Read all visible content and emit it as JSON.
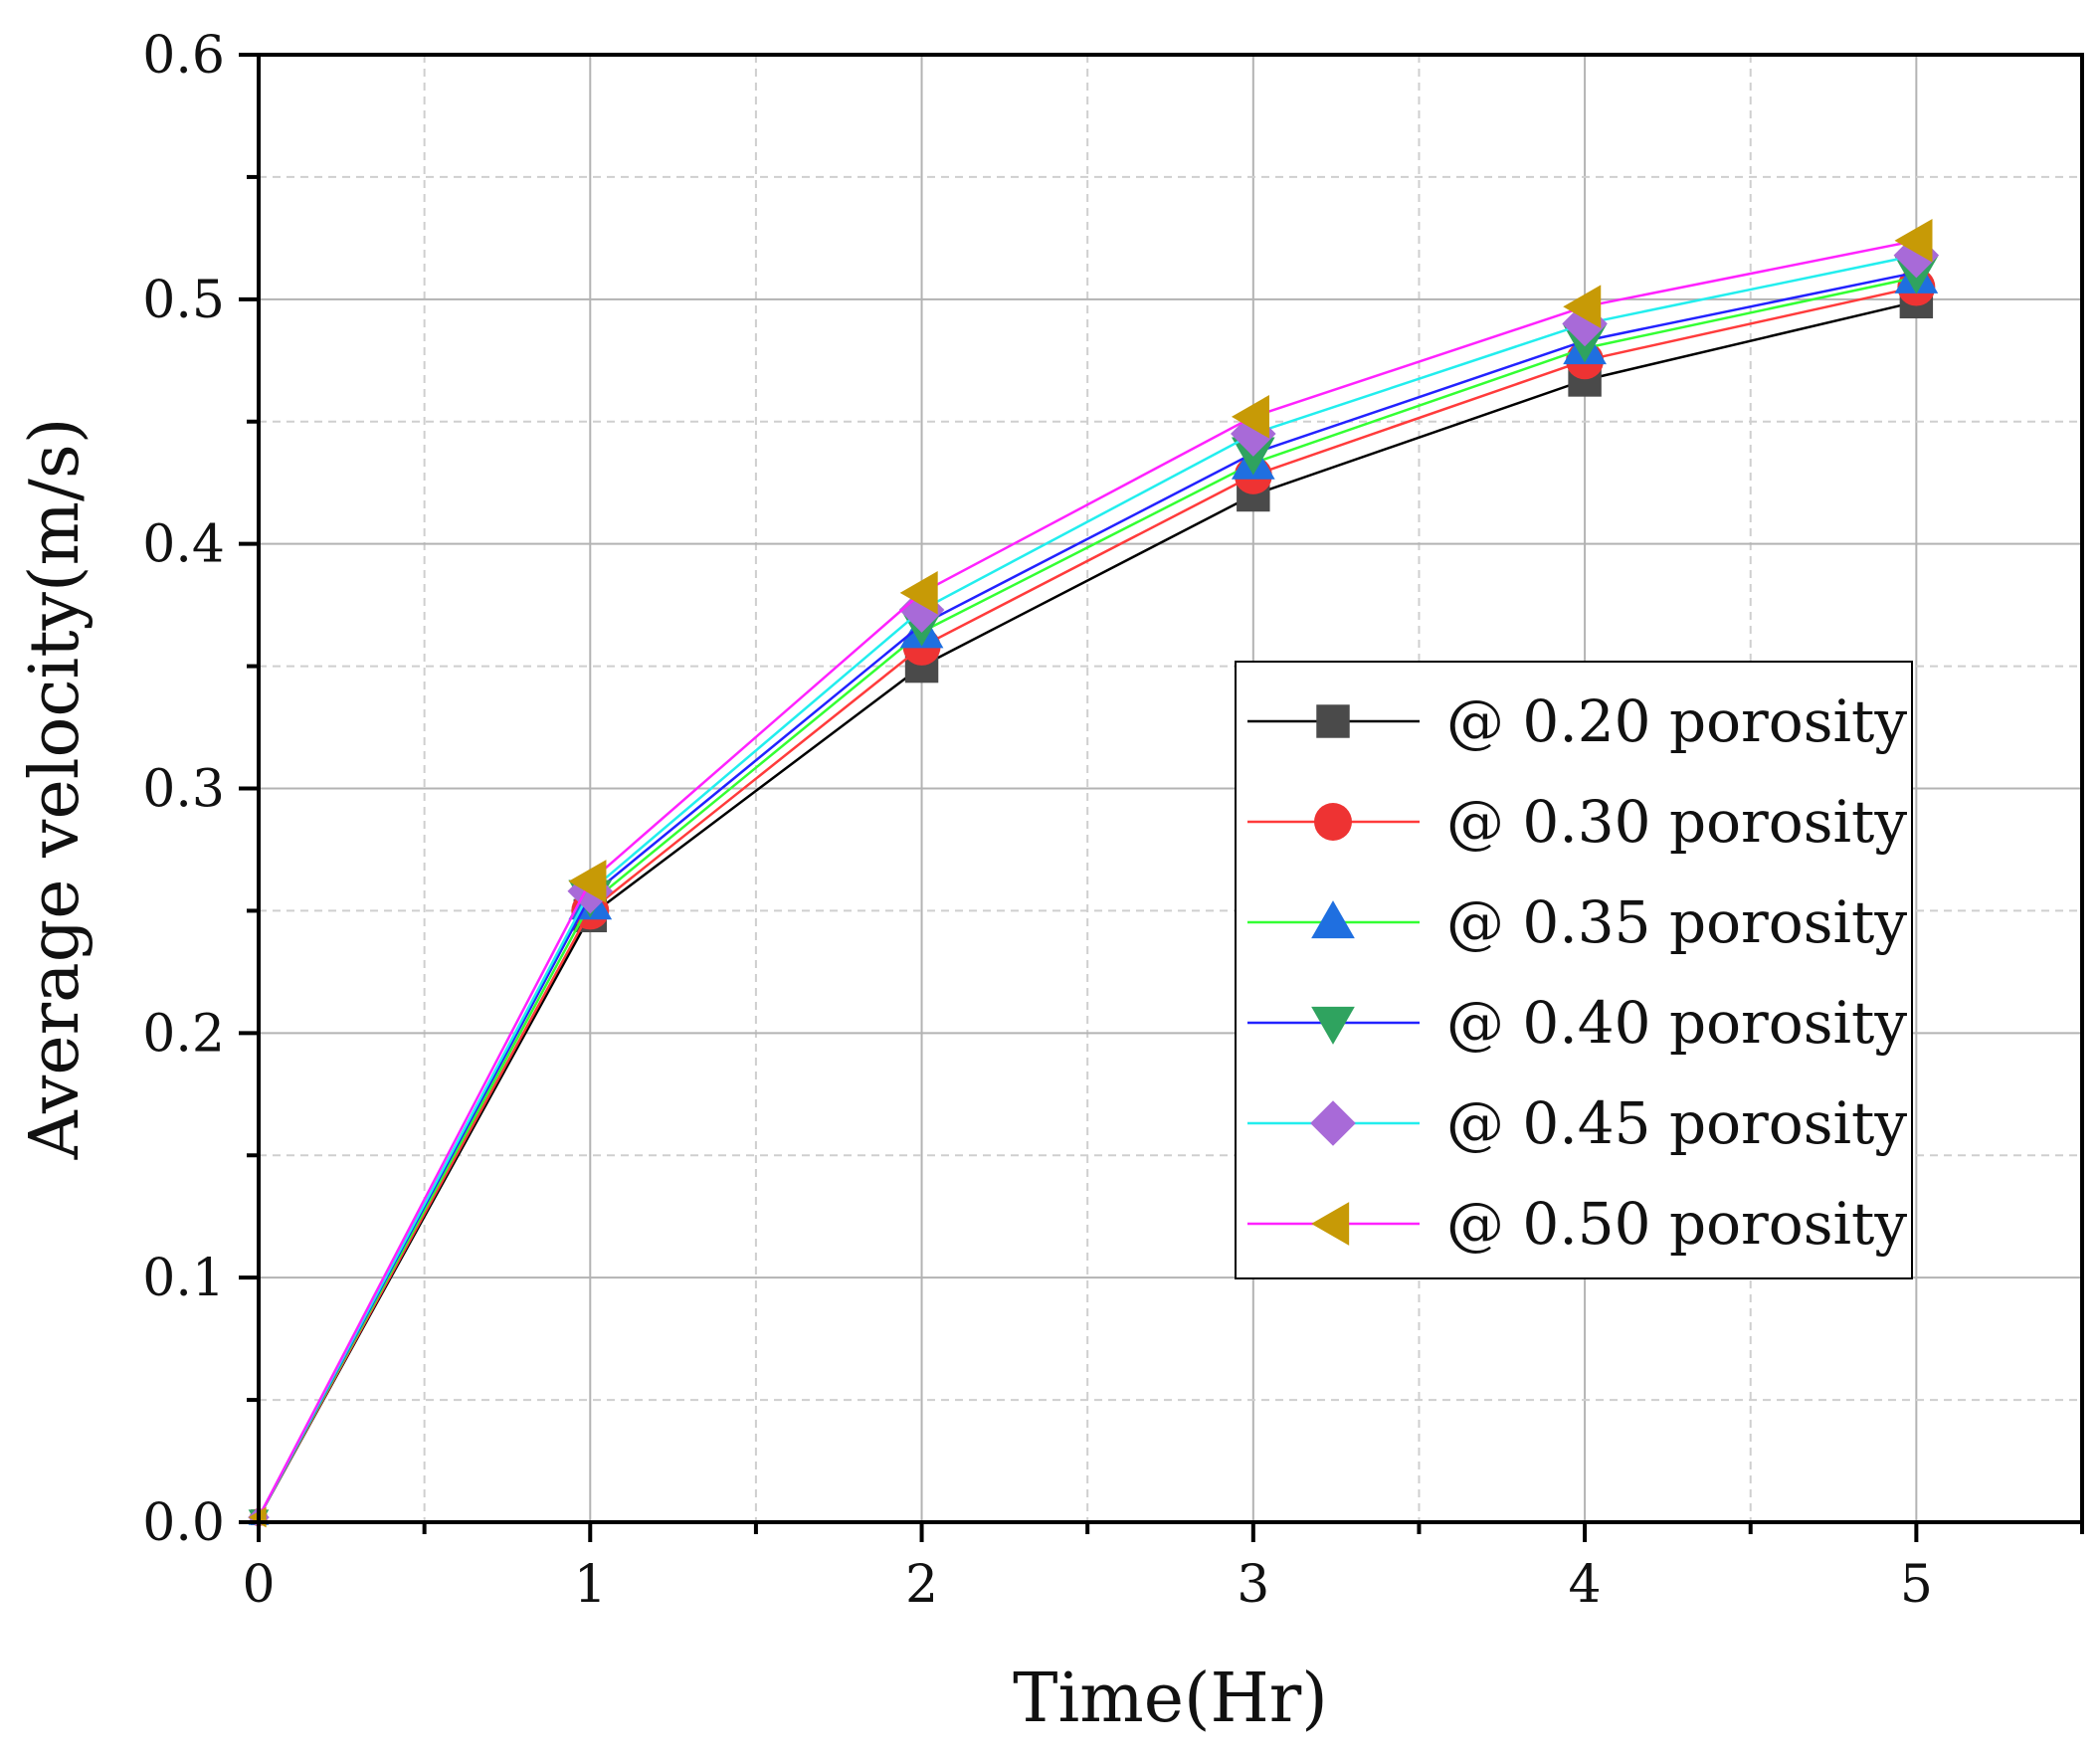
{
  "chart_data": {
    "type": "line",
    "title": "",
    "xlabel": "Time(Hr)",
    "ylabel": "Average velocity(m/s)",
    "xlim": [
      0,
      5.5
    ],
    "ylim": [
      0,
      0.6
    ],
    "x_ticks": [
      "0",
      "1",
      "2",
      "3",
      "4",
      "5"
    ],
    "y_ticks": [
      "0.0",
      "0.1",
      "0.2",
      "0.3",
      "0.4",
      "0.5",
      "0.6"
    ],
    "grid": true,
    "legend_position": "center-right",
    "x": [
      0,
      1,
      2,
      3,
      4,
      5
    ],
    "series": [
      {
        "name": "@ 0.20 porosity",
        "line_color": "#000000",
        "marker_color": "#4a4a4a",
        "marker": "square",
        "values": [
          0.002,
          0.248,
          0.35,
          0.42,
          0.467,
          0.499
        ]
      },
      {
        "name": "@ 0.30 porosity",
        "line_color": "#ff3b3b",
        "marker_color": "#ee3333",
        "marker": "circle",
        "values": [
          0.002,
          0.25,
          0.358,
          0.428,
          0.475,
          0.505
        ]
      },
      {
        "name": "@ 0.35 porosity",
        "line_color": "#33ff33",
        "marker_color": "#1f6fe0",
        "marker": "triangle-up",
        "values": [
          0.002,
          0.253,
          0.364,
          0.433,
          0.48,
          0.509
        ]
      },
      {
        "name": "@ 0.40 porosity",
        "line_color": "#2222ff",
        "marker_color": "#2fa35f",
        "marker": "triangle-down",
        "values": [
          0.002,
          0.256,
          0.367,
          0.437,
          0.483,
          0.511
        ]
      },
      {
        "name": "@ 0.45 porosity",
        "line_color": "#22eeee",
        "marker_color": "#a86ad8",
        "marker": "diamond",
        "values": [
          0.002,
          0.258,
          0.373,
          0.445,
          0.49,
          0.518
        ]
      },
      {
        "name": "@ 0.50 porosity",
        "line_color": "#ff22ff",
        "marker_color": "#c79a06",
        "marker": "triangle-left",
        "values": [
          0.002,
          0.262,
          0.38,
          0.452,
          0.497,
          0.524
        ]
      }
    ]
  }
}
